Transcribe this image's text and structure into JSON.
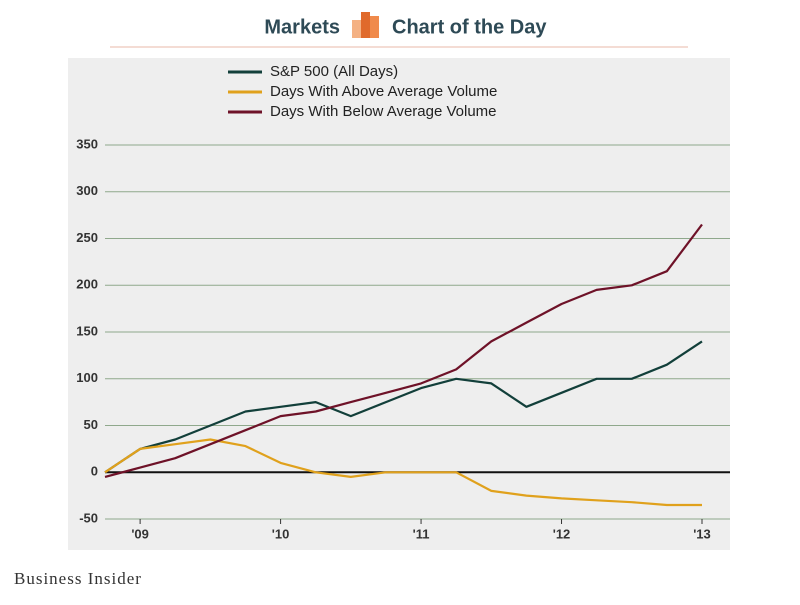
{
  "header": {
    "left": "Markets",
    "right": "Chart of the Day"
  },
  "footer": "Business Insider",
  "chart_data": {
    "type": "line",
    "categories": [
      null,
      "'09",
      null,
      null,
      null,
      "'10",
      null,
      null,
      null,
      "'11",
      null,
      null,
      null,
      "'12",
      null,
      null,
      null,
      "'13"
    ],
    "series": [
      {
        "name": "S&P 500 (All Days)",
        "color": "#123f3a",
        "values": [
          0,
          25,
          35,
          50,
          65,
          70,
          75,
          60,
          75,
          90,
          100,
          95,
          70,
          85,
          100,
          100,
          115,
          140
        ]
      },
      {
        "name": "Days With Above Average Volume",
        "color": "#e0a11c",
        "values": [
          0,
          25,
          30,
          35,
          28,
          10,
          0,
          -5,
          0,
          0,
          0,
          -20,
          -25,
          -28,
          -30,
          -32,
          -35,
          -35
        ]
      },
      {
        "name": "Days With Below Average Volume",
        "color": "#6e1228",
        "values": [
          -5,
          5,
          15,
          30,
          45,
          60,
          65,
          75,
          85,
          95,
          110,
          140,
          160,
          180,
          195,
          200,
          215,
          265
        ]
      }
    ],
    "ylim": [
      -50,
      350
    ],
    "yticks": [
      -50,
      0,
      50,
      100,
      150,
      200,
      250,
      300,
      350
    ],
    "grid": true,
    "legend": "top"
  }
}
